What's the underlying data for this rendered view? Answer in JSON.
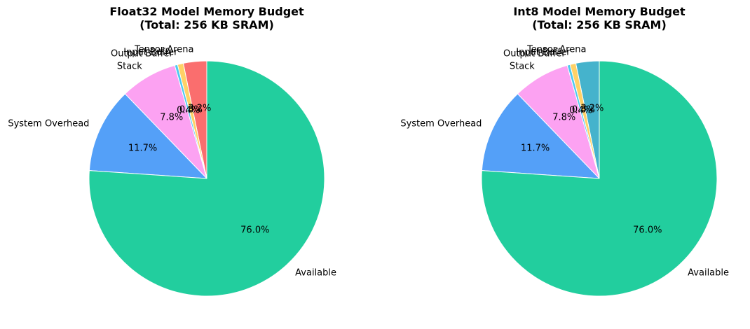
{
  "figure": {
    "background": "#ffffff",
    "text_color": "#000000",
    "wedge_edge_color": "#ffffff"
  },
  "chart_data": [
    {
      "type": "pie",
      "title": "Float32 Model Memory Budget",
      "subtitle": "(Total: 256 KB SRAM)",
      "start_angle": 90,
      "counterclock": true,
      "label_distance": 1.1,
      "pct_distance": 0.6,
      "legend": "none",
      "slices": [
        {
          "label": "Tensor Arena",
          "value": 3.2,
          "pct_label": "3.2%",
          "color": "#FA6E6E"
        },
        {
          "label": "Input Buffer",
          "value": 0.8,
          "pct_label": "0.8%",
          "color": "#FFD166"
        },
        {
          "label": "Output Buffer",
          "value": 0.4,
          "pct_label": "0.4%",
          "color": "#4DC9F0"
        },
        {
          "label": "Stack",
          "value": 7.8,
          "pct_label": "7.8%",
          "color": "#FCA2F2"
        },
        {
          "label": "System Overhead",
          "value": 11.7,
          "pct_label": "11.7%",
          "color": "#54A0F8"
        },
        {
          "label": "Available",
          "value": 76.0,
          "pct_label": "76.0%",
          "color": "#22CE9E"
        }
      ]
    },
    {
      "type": "pie",
      "title": "Int8 Model Memory Budget",
      "subtitle": "(Total: 256 KB SRAM)",
      "start_angle": 90,
      "counterclock": true,
      "label_distance": 1.1,
      "pct_distance": 0.6,
      "legend": "none",
      "slices": [
        {
          "label": "Tensor Arena",
          "value": 3.2,
          "pct_label": "3.2%",
          "color": "#45B3CC"
        },
        {
          "label": "Input Buffer",
          "value": 0.8,
          "pct_label": "0.8%",
          "color": "#FFD166"
        },
        {
          "label": "Output Buffer",
          "value": 0.4,
          "pct_label": "0.4%",
          "color": "#4DC9F0"
        },
        {
          "label": "Stack",
          "value": 7.8,
          "pct_label": "7.8%",
          "color": "#FCA2F2"
        },
        {
          "label": "System Overhead",
          "value": 11.7,
          "pct_label": "11.7%",
          "color": "#54A0F8"
        },
        {
          "label": "Available",
          "value": 76.0,
          "pct_label": "76.0%",
          "color": "#22CE9E"
        }
      ]
    }
  ]
}
